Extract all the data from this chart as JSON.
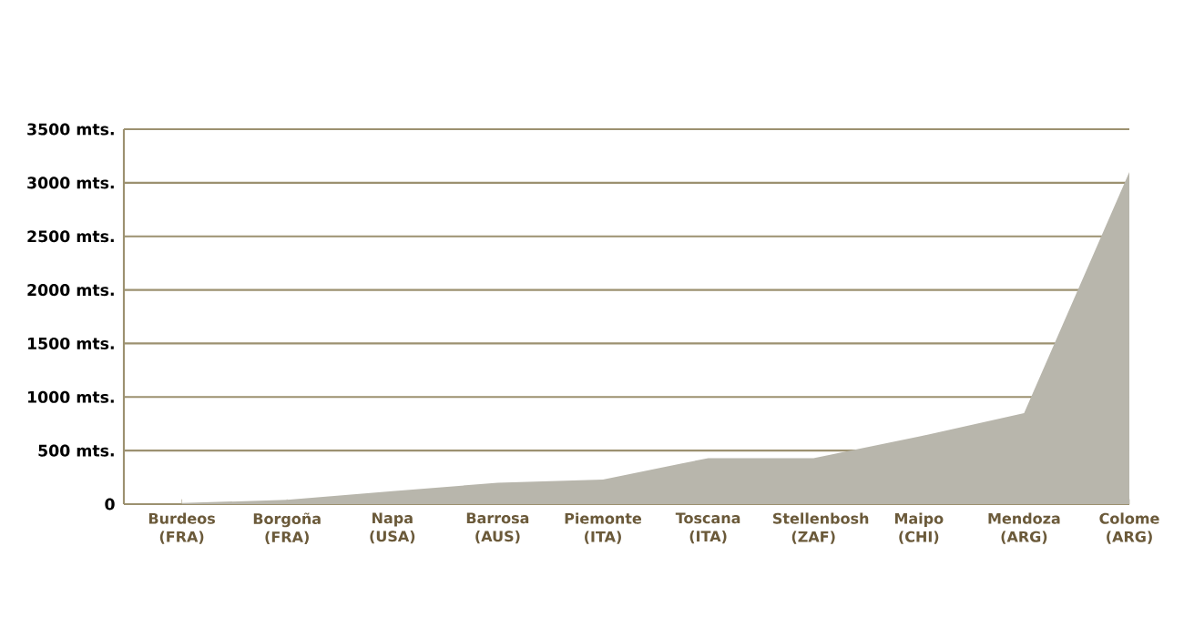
{
  "chart_data": {
    "type": "area",
    "categories": [
      "Burdeos (FRA)",
      "Borgoña (FRA)",
      "Napa (USA)",
      "Barrosa (AUS)",
      "Piemonte (ITA)",
      "Toscana (ITA)",
      "Stellenbosh (ZAF)",
      "Maipo (CHI)",
      "Mendoza (ARG)",
      "Colome (ARG)"
    ],
    "values": [
      10,
      40,
      120,
      200,
      230,
      430,
      430,
      630,
      850,
      3100
    ],
    "color": "#b8b6ac",
    "ylim": [
      0,
      3500
    ],
    "yticks": [
      0,
      {
        "value": 500,
        "label": "500 mts."
      },
      {
        "value": 1000,
        "label": "1000 mts."
      },
      {
        "value": 1500,
        "label": "1500 mts."
      },
      {
        "value": 2000,
        "label": "2000 mts."
      },
      {
        "value": 2500,
        "label": "2500 mts."
      },
      {
        "value": 3000,
        "label": "3000 mts."
      },
      {
        "value": 3500,
        "label": "3500 mts."
      }
    ],
    "grid": "y"
  }
}
